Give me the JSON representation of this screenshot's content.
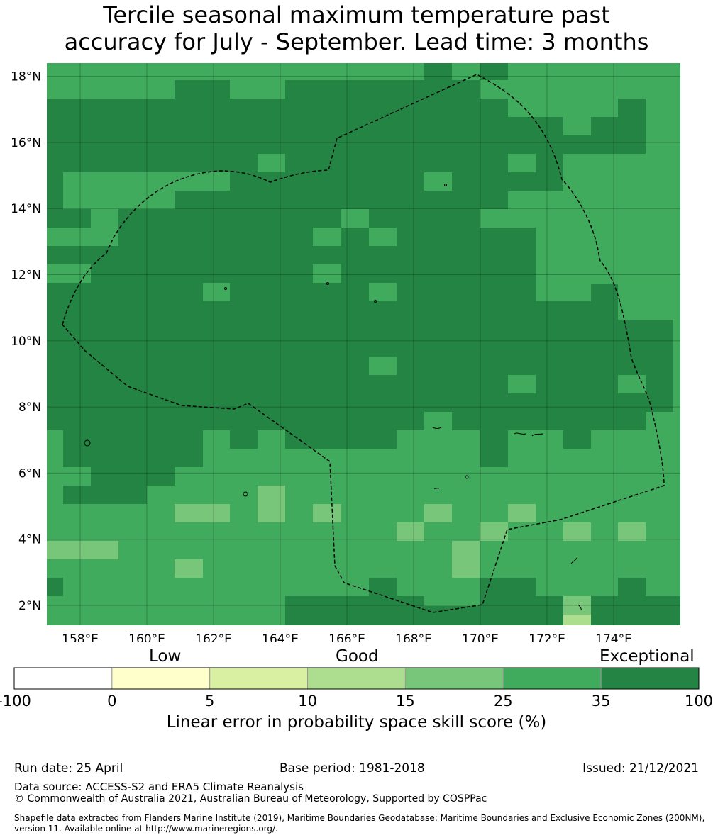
{
  "title": {
    "line1": "Tercile seasonal maximum temperature past",
    "line2": "accuracy for July - September. Lead time: 3 months"
  },
  "map": {
    "lon_range": [
      157.0,
      176.0
    ],
    "lat_range": [
      1.4,
      18.4
    ],
    "cell_size_deg": 0.833,
    "lon_ticks": [
      "158°E",
      "160°E",
      "162°E",
      "164°E",
      "166°E",
      "168°E",
      "170°E",
      "172°E",
      "174°E"
    ],
    "lat_ticks": [
      "18°N",
      "16°N",
      "14°N",
      "12°N",
      "10°N",
      "8°N",
      "6°N",
      "4°N",
      "2°N"
    ],
    "gridlines": true,
    "boundary": "dashed EEZ outline (Marshall Islands)",
    "dominant_categories": {
      "north_and_center": "35-100",
      "south_and_edges": "25-35",
      "scattered_patches": "15-25"
    }
  },
  "colorbar": {
    "qualitative": [
      "Low",
      "Good",
      "Exceptional"
    ],
    "ticks": [
      "-100",
      "0",
      "5",
      "10",
      "15",
      "25",
      "35",
      "100"
    ],
    "colors": [
      "#ffffff",
      "#ffffcc",
      "#d9f0a3",
      "#addd8e",
      "#78c679",
      "#41ab5d",
      "#238443"
    ],
    "label": "Linear error in probability space skill score (%)"
  },
  "footer": {
    "run_date": "Run date: 25 April",
    "base_period": "Base period: 1981-2018",
    "issued": "Issued: 21/12/2021",
    "data_source": "Data source: ACCESS-S2 and ERA5 Climate Reanalysis",
    "copyright": "© Commonwealth of Australia 2021, Australian Bureau of Meteorology, Supported by COSPPac",
    "shapefile": "Shapefile data extracted from Flanders Marine Institute (2019), Maritime Boundaries Geodatabase: Maritime Boundaries and Exclusive Economic Zones (200NM), version 11. Available online at http://www.marineregions.org/."
  }
}
